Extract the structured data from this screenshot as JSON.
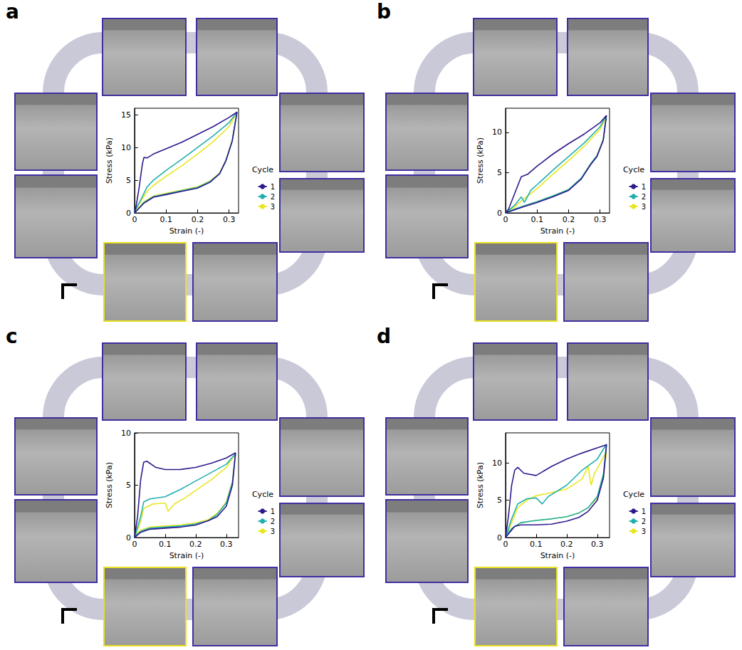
{
  "chart_data": [
    {
      "type": "line",
      "title": "a",
      "x_label": "Strain (-)",
      "y_label": "Stress (kPa)",
      "legend_title": "Cycle",
      "legend": "right",
      "xlim": [
        0,
        0.33
      ],
      "xticks": [
        0,
        0.1,
        0.2,
        0.3
      ],
      "ylim": [
        0,
        16
      ],
      "yticks": [
        0,
        5,
        10,
        15
      ],
      "series": [
        {
          "name": "1",
          "color": "#2e1a8c",
          "x": [
            0,
            0.005,
            0.015,
            0.025,
            0.03,
            0.04,
            0.06,
            0.1,
            0.15,
            0.2,
            0.25,
            0.3,
            0.325,
            0.31,
            0.29,
            0.27,
            0.24,
            0.2,
            0.15,
            0.1,
            0.06,
            0.03,
            0.01,
            0
          ],
          "values": [
            0,
            1,
            4,
            7.5,
            8.5,
            8.4,
            9,
            9.8,
            10.8,
            12,
            13.2,
            14.6,
            15.4,
            11,
            8,
            6,
            4.7,
            3.8,
            3.3,
            2.8,
            2.4,
            1.5,
            0.5,
            0
          ]
        },
        {
          "name": "2",
          "color": "#1fb0ae",
          "x": [
            0,
            0.02,
            0.04,
            0.06,
            0.1,
            0.15,
            0.2,
            0.25,
            0.3,
            0.325,
            0.31,
            0.29,
            0.27,
            0.24,
            0.2,
            0.15,
            0.1,
            0.06,
            0.03,
            0.01,
            0
          ],
          "values": [
            0.2,
            2,
            4,
            5,
            6.5,
            8.2,
            10,
            11.8,
            13.8,
            15.4,
            11,
            8,
            6,
            4.8,
            3.9,
            3.4,
            2.9,
            2.5,
            1.6,
            0.5,
            0.1
          ]
        },
        {
          "name": "3",
          "color": "#e8e620",
          "x": [
            0,
            0.02,
            0.04,
            0.06,
            0.1,
            0.15,
            0.2,
            0.25,
            0.3,
            0.325,
            0.31,
            0.29,
            0.27,
            0.24,
            0.2,
            0.15,
            0.1,
            0.06,
            0.03,
            0.01,
            0
          ],
          "values": [
            0.2,
            1.8,
            3.3,
            4.2,
            5.6,
            7.2,
            9,
            10.9,
            13.2,
            15.4,
            11.1,
            8.1,
            6.1,
            4.9,
            4,
            3.5,
            3,
            2.6,
            1.7,
            0.6,
            0.1
          ]
        }
      ]
    },
    {
      "type": "line",
      "title": "b",
      "x_label": "Strain (-)",
      "y_label": "Stress (kPa)",
      "legend_title": "Cycle",
      "legend": "right",
      "xlim": [
        0,
        0.33
      ],
      "xticks": [
        0,
        0.1,
        0.2,
        0.3
      ],
      "ylim": [
        0,
        13
      ],
      "yticks": [
        0,
        5,
        10
      ],
      "series": [
        {
          "name": "1",
          "color": "#2e1a8c",
          "x": [
            0,
            0.01,
            0.03,
            0.05,
            0.07,
            0.1,
            0.15,
            0.2,
            0.25,
            0.3,
            0.32,
            0.31,
            0.29,
            0.27,
            0.24,
            0.2,
            0.15,
            0.1,
            0.06,
            0.03,
            0
          ],
          "values": [
            0,
            0.5,
            2.5,
            4.5,
            4.8,
            5.8,
            7.3,
            8.6,
            9.8,
            11.2,
            12.1,
            9,
            7,
            6,
            4.2,
            2.8,
            2,
            1.3,
            0.8,
            0.4,
            0
          ]
        },
        {
          "name": "2",
          "color": "#1fb0ae",
          "x": [
            0,
            0.03,
            0.05,
            0.06,
            0.08,
            0.1,
            0.15,
            0.2,
            0.25,
            0.3,
            0.32,
            0.31,
            0.29,
            0.27,
            0.24,
            0.2,
            0.15,
            0.1,
            0.06,
            0.03,
            0
          ],
          "values": [
            0,
            1,
            2,
            1.3,
            2.8,
            3.5,
            5.3,
            7,
            8.7,
            10.7,
            12.1,
            9.1,
            7.1,
            6.1,
            4.3,
            2.9,
            2.1,
            1.4,
            0.9,
            0.5,
            0
          ]
        },
        {
          "name": "3",
          "color": "#e8e620",
          "x": [
            0,
            0.03,
            0.06,
            0.1,
            0.15,
            0.2,
            0.25,
            0.3,
            0.32,
            0.31,
            0.29,
            0.27,
            0.24,
            0.2,
            0.15,
            0.1,
            0.06,
            0.03,
            0
          ],
          "values": [
            0,
            0.8,
            1.8,
            3,
            4.8,
            6.5,
            8.3,
            10.4,
            12,
            9.1,
            7.1,
            6.1,
            4.3,
            2.9,
            2.1,
            1.4,
            0.9,
            0.5,
            0
          ]
        }
      ]
    },
    {
      "type": "line",
      "title": "c",
      "x_label": "Strain (-)",
      "y_label": "Stress (kPa)",
      "legend_title": "Cycle",
      "legend": "right",
      "xlim": [
        0,
        0.34
      ],
      "xticks": [
        0,
        0.1,
        0.2,
        0.3
      ],
      "ylim": [
        0,
        10
      ],
      "yticks": [
        0,
        5,
        10
      ],
      "series": [
        {
          "name": "1",
          "color": "#2e1a8c",
          "x": [
            0,
            0.01,
            0.02,
            0.03,
            0.04,
            0.07,
            0.1,
            0.15,
            0.2,
            0.25,
            0.3,
            0.33,
            0.32,
            0.3,
            0.27,
            0.24,
            0.2,
            0.15,
            0.1,
            0.05,
            0.02,
            0
          ],
          "values": [
            0,
            2,
            5.5,
            7.2,
            7.3,
            6.7,
            6.5,
            6.5,
            6.7,
            7.1,
            7.6,
            8.1,
            5,
            3,
            2,
            1.6,
            1.2,
            1,
            0.9,
            0.8,
            0.5,
            0
          ]
        },
        {
          "name": "2",
          "color": "#1fb0ae",
          "x": [
            0,
            0.02,
            0.03,
            0.05,
            0.1,
            0.15,
            0.2,
            0.25,
            0.3,
            0.33,
            0.32,
            0.3,
            0.27,
            0.24,
            0.2,
            0.15,
            0.1,
            0.05,
            0.02,
            0
          ],
          "values": [
            0,
            2,
            3.4,
            3.7,
            3.9,
            4.6,
            5.4,
            6.2,
            7,
            8,
            5.3,
            3.3,
            2.2,
            1.6,
            1.3,
            1.1,
            1,
            0.9,
            0.6,
            0.1
          ]
        },
        {
          "name": "3",
          "color": "#e8e620",
          "x": [
            0,
            0.02,
            0.03,
            0.06,
            0.1,
            0.11,
            0.13,
            0.16,
            0.2,
            0.25,
            0.3,
            0.33,
            0.32,
            0.3,
            0.27,
            0.24,
            0.2,
            0.15,
            0.1,
            0.05,
            0.02,
            0
          ],
          "values": [
            0,
            1.5,
            2.8,
            3.2,
            3.3,
            2.5,
            3.2,
            3.7,
            4.5,
            5.5,
            6.7,
            8,
            5.4,
            3.4,
            2.3,
            1.7,
            1.4,
            1.2,
            1.1,
            1,
            0.7,
            0.1
          ]
        }
      ]
    },
    {
      "type": "line",
      "title": "d",
      "x_label": "Strain (-)",
      "y_label": "Stress (kPa)",
      "legend_title": "Cycle",
      "legend": "right",
      "xlim": [
        0,
        0.34
      ],
      "xticks": [
        0,
        0.1,
        0.2,
        0.3
      ],
      "ylim": [
        0,
        14
      ],
      "yticks": [
        0,
        5,
        10
      ],
      "series": [
        {
          "name": "1",
          "color": "#2e1a8c",
          "x": [
            0,
            0.01,
            0.02,
            0.03,
            0.04,
            0.06,
            0.1,
            0.15,
            0.2,
            0.25,
            0.3,
            0.33,
            0.32,
            0.3,
            0.27,
            0.24,
            0.2,
            0.15,
            0.1,
            0.05,
            0.03,
            0.01,
            0
          ],
          "values": [
            0,
            3,
            7,
            9,
            9.4,
            8.6,
            8.3,
            9.5,
            10.5,
            11.3,
            12,
            12.4,
            8,
            5,
            3.5,
            2.7,
            2.2,
            1.8,
            1.7,
            1.7,
            1.5,
            0.5,
            0
          ]
        },
        {
          "name": "2",
          "color": "#1fb0ae",
          "x": [
            0,
            0.02,
            0.04,
            0.07,
            0.1,
            0.12,
            0.14,
            0.2,
            0.25,
            0.3,
            0.33,
            0.32,
            0.3,
            0.27,
            0.24,
            0.2,
            0.15,
            0.1,
            0.05,
            0.02,
            0
          ],
          "values": [
            0,
            2.5,
            4.5,
            5.2,
            5.3,
            4.5,
            5.5,
            7,
            9,
            10.5,
            12.5,
            8.5,
            5.5,
            4,
            3.3,
            2.8,
            2.5,
            2.3,
            2,
            1.2,
            0.2
          ]
        },
        {
          "name": "3",
          "color": "#e8e620",
          "x": [
            0,
            0.02,
            0.04,
            0.07,
            0.1,
            0.15,
            0.2,
            0.25,
            0.27,
            0.28,
            0.29,
            0.31,
            0.33,
            0.32,
            0.3,
            0.27,
            0.24,
            0.2,
            0.15,
            0.1,
            0.05,
            0.02,
            0
          ],
          "values": [
            0,
            2,
            4,
            5,
            5.6,
            6,
            6.5,
            7.8,
            9.5,
            7,
            8.5,
            10,
            11.5,
            8,
            5.3,
            4,
            3.3,
            2.8,
            2.5,
            2.3,
            2,
            1.2,
            0.2
          ]
        }
      ]
    }
  ]
}
